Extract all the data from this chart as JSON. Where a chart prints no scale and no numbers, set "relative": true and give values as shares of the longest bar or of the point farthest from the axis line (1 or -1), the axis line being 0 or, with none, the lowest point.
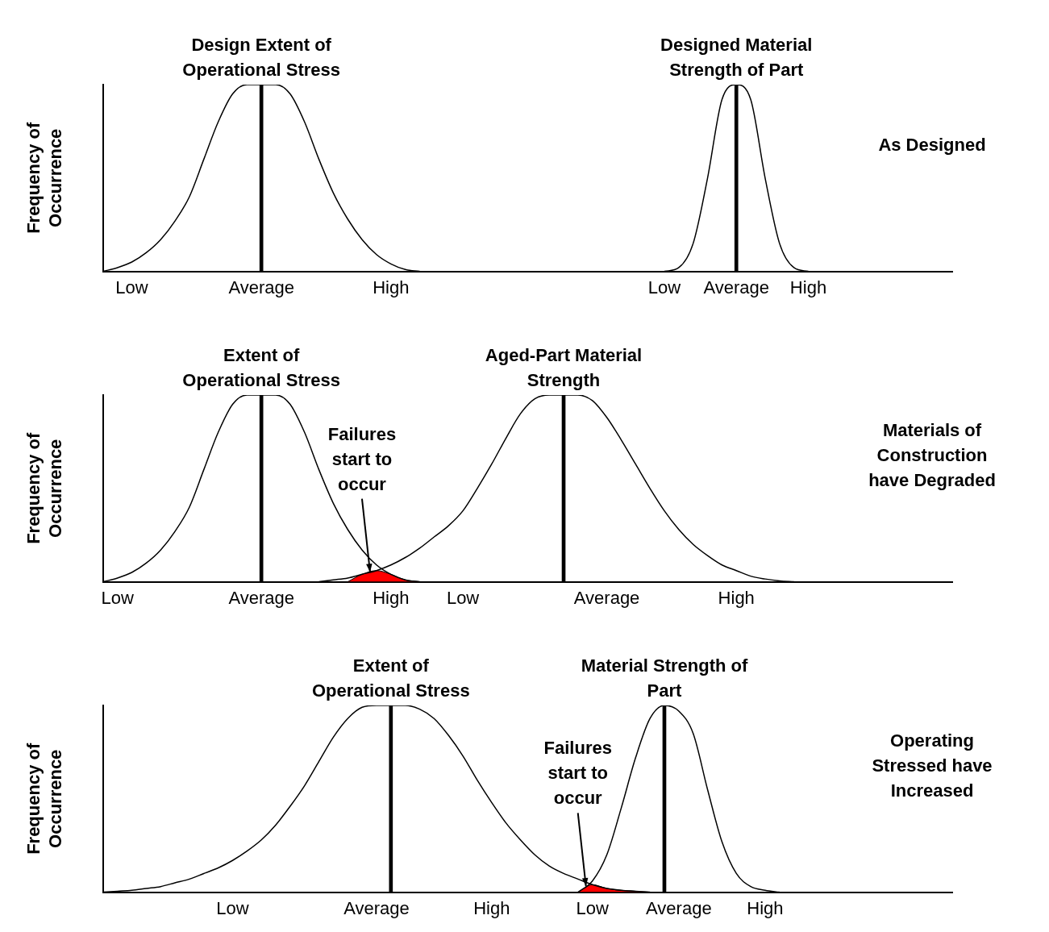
{
  "chart_data": [
    {
      "type": "line",
      "relative": true,
      "title": "As Designed",
      "ylabel": "Frequency of Occurrence",
      "grid": false,
      "legend": false,
      "categories": [
        null,
        null,
        "Low",
        null,
        null,
        null,
        null,
        null,
        null,
        null,
        null,
        "Average",
        null,
        null,
        null,
        null,
        null,
        null,
        null,
        null,
        "High",
        null,
        null,
        null,
        null,
        null,
        null,
        null,
        null,
        null,
        null,
        null,
        null,
        null,
        null,
        null,
        null,
        null,
        null,
        "Low",
        null,
        null,
        null,
        null,
        "Average",
        null,
        null,
        null,
        null,
        "High",
        null,
        null,
        null,
        null,
        null,
        null,
        null,
        null,
        null,
        null
      ],
      "series": [
        {
          "name": "Design Extent of Operational Stress",
          "color": "#000000",
          "values": [
            0,
            0.02,
            0.05,
            0.1,
            0.17,
            0.27,
            0.4,
            0.6,
            0.8,
            0.95,
            1,
            1,
            1,
            0.95,
            0.8,
            0.6,
            0.42,
            0.28,
            0.17,
            0.09,
            0.04,
            0.01,
            0,
            null,
            null,
            null,
            null,
            null,
            null,
            null,
            null,
            null,
            null,
            null,
            null,
            null,
            null,
            null,
            null,
            null,
            null,
            null,
            null,
            null,
            null,
            null,
            null,
            null,
            null,
            null,
            null,
            null,
            null,
            null,
            null,
            null,
            null,
            null,
            null,
            null
          ]
        },
        {
          "name": "Designed Material Strength of Part",
          "color": "#000000",
          "values": [
            null,
            null,
            null,
            null,
            null,
            null,
            null,
            null,
            null,
            null,
            null,
            null,
            null,
            null,
            null,
            null,
            null,
            null,
            null,
            null,
            null,
            null,
            null,
            null,
            null,
            null,
            null,
            null,
            null,
            null,
            null,
            null,
            null,
            null,
            null,
            null,
            null,
            null,
            null,
            0,
            0.02,
            0.15,
            0.5,
            0.92,
            1,
            0.92,
            0.5,
            0.15,
            0.02,
            0,
            null,
            null,
            null,
            null,
            null,
            null,
            null,
            null,
            null,
            null
          ]
        },
        {
          "type": "bar",
          "color": "#000000",
          "values": [
            null,
            null,
            null,
            null,
            null,
            null,
            null,
            null,
            null,
            null,
            null,
            1,
            null,
            null,
            null,
            null,
            null,
            null,
            null,
            null,
            null,
            null,
            null,
            null,
            null,
            null,
            null,
            null,
            null,
            null,
            null,
            null,
            null,
            null,
            null,
            null,
            null,
            null,
            null,
            null,
            null,
            null,
            null,
            null,
            1,
            null,
            null,
            null,
            null,
            null,
            null,
            null,
            null,
            null,
            null,
            null,
            null,
            null,
            null,
            null
          ]
        }
      ]
    },
    {
      "type": "line",
      "relative": true,
      "title": "Materials of Construction have Degraded",
      "ylabel": "Frequency of Occurrence",
      "grid": false,
      "legend": false,
      "annotations": [
        "Failures start to occur"
      ],
      "categories": [
        null,
        "Low",
        null,
        null,
        null,
        null,
        null,
        null,
        null,
        null,
        null,
        "Average",
        null,
        null,
        null,
        null,
        null,
        null,
        null,
        null,
        "High",
        null,
        null,
        null,
        null,
        "Low",
        null,
        null,
        null,
        null,
        null,
        null,
        null,
        null,
        null,
        "Average",
        null,
        null,
        null,
        null,
        null,
        null,
        null,
        null,
        "High",
        null,
        null,
        null,
        null,
        null,
        null,
        null,
        null,
        null,
        null,
        null,
        null,
        null,
        null,
        null
      ],
      "series": [
        {
          "name": "Extent of Operational Stress",
          "color": "#000000",
          "values": [
            0,
            0.02,
            0.05,
            0.1,
            0.17,
            0.27,
            0.4,
            0.6,
            0.8,
            0.95,
            1,
            1,
            1,
            0.95,
            0.8,
            0.6,
            0.42,
            0.28,
            0.17,
            0.09,
            0.04,
            0.01,
            0,
            null,
            null,
            null,
            null,
            null,
            null,
            null,
            null,
            null,
            null,
            null,
            null,
            null,
            null,
            null,
            null,
            null,
            null,
            null,
            null,
            null,
            null,
            null,
            null,
            null,
            null,
            null,
            null,
            null,
            null,
            null,
            null,
            null,
            null,
            null,
            null,
            null
          ]
        },
        {
          "name": "Aged-Part Material Strength",
          "color": "#000000",
          "values": [
            null,
            null,
            null,
            null,
            null,
            null,
            null,
            null,
            null,
            null,
            null,
            null,
            null,
            null,
            null,
            0,
            0.01,
            0.02,
            0.04,
            0.06,
            0.09,
            0.13,
            0.18,
            0.24,
            0.3,
            0.38,
            0.5,
            0.63,
            0.77,
            0.9,
            0.98,
            1,
            1,
            1,
            0.97,
            0.88,
            0.76,
            0.63,
            0.5,
            0.38,
            0.28,
            0.2,
            0.14,
            0.09,
            0.06,
            0.03,
            0.015,
            0.005,
            0,
            null,
            null,
            null,
            null,
            null,
            null,
            null,
            null,
            null,
            null,
            null
          ]
        },
        {
          "type": "area",
          "color": "#ff0000",
          "values": [
            null,
            null,
            null,
            null,
            null,
            null,
            null,
            null,
            null,
            null,
            null,
            null,
            null,
            null,
            null,
            null,
            null,
            0,
            0.04,
            0.06,
            0.04,
            0.01,
            0,
            null,
            null,
            null,
            null,
            null,
            null,
            null,
            null,
            null,
            null,
            null,
            null,
            null,
            null,
            null,
            null,
            null,
            null,
            null,
            null,
            null,
            null,
            null,
            null,
            null,
            null,
            null,
            null,
            null,
            null,
            null,
            null,
            null,
            null,
            null,
            null,
            null
          ]
        },
        {
          "type": "bar",
          "color": "#000000",
          "values": [
            null,
            null,
            null,
            null,
            null,
            null,
            null,
            null,
            null,
            null,
            null,
            1,
            null,
            null,
            null,
            null,
            null,
            null,
            null,
            null,
            null,
            null,
            null,
            null,
            null,
            null,
            null,
            null,
            null,
            null,
            null,
            null,
            1,
            null,
            null,
            null,
            null,
            null,
            null,
            null,
            null,
            null,
            null,
            null,
            null,
            null,
            null,
            null,
            null,
            null,
            null,
            null,
            null,
            null,
            null,
            null,
            null,
            null,
            null,
            null
          ]
        }
      ]
    },
    {
      "type": "line",
      "relative": true,
      "title": "Operating Stressed have Increased",
      "ylabel": "Frequency of Occurrence",
      "grid": false,
      "legend": false,
      "annotations": [
        "Failures start to occur"
      ],
      "categories": [
        null,
        null,
        null,
        null,
        null,
        null,
        null,
        null,
        null,
        "Low",
        null,
        null,
        null,
        null,
        null,
        null,
        null,
        null,
        null,
        "Average",
        null,
        null,
        null,
        null,
        null,
        null,
        null,
        "High",
        null,
        null,
        null,
        null,
        null,
        null,
        "Low",
        null,
        null,
        null,
        null,
        null,
        "Average",
        null,
        null,
        null,
        null,
        null,
        "High",
        null,
        null,
        null,
        null,
        null,
        null,
        null,
        null,
        null,
        null,
        null,
        null,
        null
      ],
      "series": [
        {
          "name": "Extent of Operational Stress",
          "color": "#000000",
          "values": [
            0,
            0.005,
            0.01,
            0.02,
            0.03,
            0.05,
            0.07,
            0.1,
            0.13,
            0.17,
            0.22,
            0.28,
            0.36,
            0.46,
            0.57,
            0.7,
            0.83,
            0.93,
            0.99,
            1,
            1,
            1,
            0.98,
            0.93,
            0.84,
            0.73,
            0.6,
            0.48,
            0.37,
            0.28,
            0.2,
            0.14,
            0.1,
            0.07,
            0.04,
            0.02,
            0.01,
            0.005,
            0,
            null,
            null,
            null,
            null,
            null,
            null,
            null,
            null,
            null,
            null,
            null,
            null,
            null,
            null,
            null,
            null,
            null,
            null,
            null,
            null,
            null
          ]
        },
        {
          "name": "Material Strength of Part",
          "color": "#000000",
          "values": [
            null,
            null,
            null,
            null,
            null,
            null,
            null,
            null,
            null,
            null,
            null,
            null,
            null,
            null,
            null,
            null,
            null,
            null,
            null,
            null,
            null,
            null,
            null,
            null,
            null,
            null,
            null,
            null,
            null,
            null,
            null,
            null,
            null,
            0,
            0.06,
            0.2,
            0.45,
            0.72,
            0.93,
            1,
            0.97,
            0.85,
            0.55,
            0.27,
            0.1,
            0.03,
            0.01,
            0,
            null,
            null,
            null,
            null,
            null,
            null,
            null,
            null,
            null,
            null,
            null,
            null
          ]
        },
        {
          "type": "area",
          "color": "#ff0000",
          "values": [
            null,
            null,
            null,
            null,
            null,
            null,
            null,
            null,
            null,
            null,
            null,
            null,
            null,
            null,
            null,
            null,
            null,
            null,
            null,
            null,
            null,
            null,
            null,
            null,
            null,
            null,
            null,
            null,
            null,
            null,
            null,
            null,
            null,
            0,
            0.04,
            0.02,
            0.01,
            0.005,
            0,
            null,
            null,
            null,
            null,
            null,
            null,
            null,
            null,
            null,
            null,
            null,
            null,
            null,
            null,
            null,
            null,
            null,
            null,
            null,
            null,
            null
          ]
        },
        {
          "type": "bar",
          "color": "#000000",
          "values": [
            null,
            null,
            null,
            null,
            null,
            null,
            null,
            null,
            null,
            null,
            null,
            null,
            null,
            null,
            null,
            null,
            null,
            null,
            null,
            null,
            1,
            null,
            null,
            null,
            null,
            null,
            null,
            null,
            null,
            null,
            null,
            null,
            null,
            null,
            null,
            null,
            null,
            null,
            null,
            1,
            null,
            null,
            null,
            null,
            null,
            null,
            null,
            null,
            null,
            null,
            null,
            null,
            null,
            null,
            null,
            null,
            null,
            null,
            null,
            null
          ]
        }
      ]
    }
  ]
}
